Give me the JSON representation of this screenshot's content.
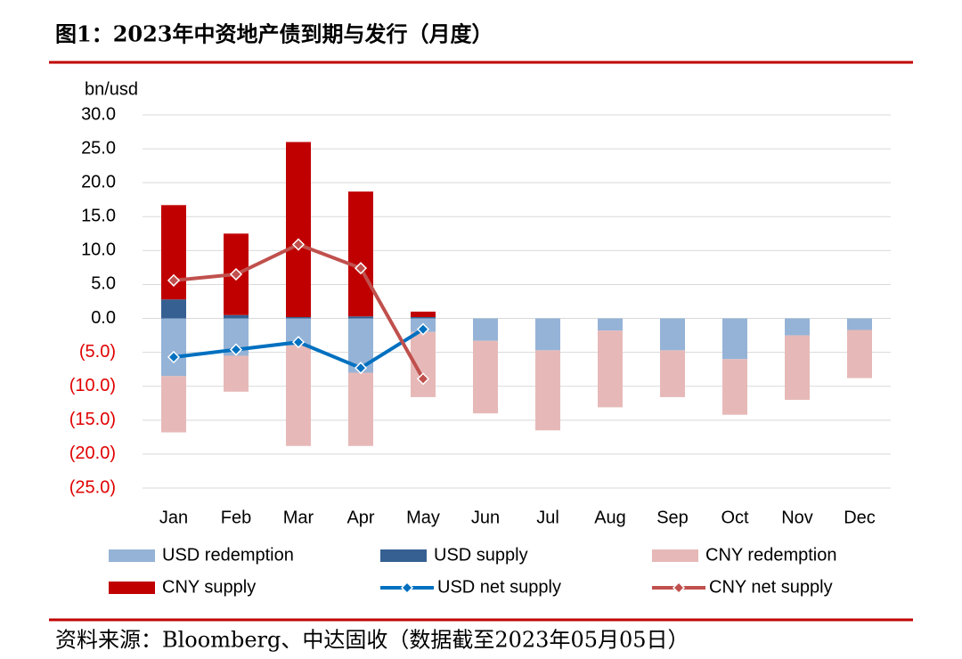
{
  "title": "图1：2023年中资地产债到期与发行（月度）",
  "source": "资料来源：Bloomberg、中达固收（数据截至2023年05月05日）",
  "chart_data": {
    "type": "bar",
    "y_label": "bn/usd",
    "categories": [
      "Jan",
      "Feb",
      "Mar",
      "Apr",
      "May",
      "Jun",
      "Jul",
      "Aug",
      "Sep",
      "Oct",
      "Nov",
      "Dec"
    ],
    "series": [
      {
        "name": "USD redemption",
        "kind": "bar",
        "color": "#95b3d7",
        "values": [
          -8.5,
          -5.5,
          -4.0,
          -8.0,
          -2.0,
          -3.3,
          -4.7,
          -1.8,
          -4.7,
          -6.0,
          -2.5,
          -1.7
        ]
      },
      {
        "name": "USD supply",
        "kind": "bar",
        "color": "#366092",
        "values": [
          2.8,
          0.5,
          0.2,
          0.3,
          0.2,
          0,
          0,
          0,
          0,
          0,
          0,
          0
        ]
      },
      {
        "name": "CNY redemption",
        "kind": "bar",
        "color": "#e6b9b8",
        "values": [
          -8.3,
          -5.3,
          -14.8,
          -10.8,
          -9.6,
          -10.7,
          -11.8,
          -11.3,
          -6.9,
          -8.2,
          -9.5,
          -7.1
        ]
      },
      {
        "name": "CNY supply",
        "kind": "bar",
        "color": "#c00000",
        "values": [
          13.9,
          12.0,
          25.8,
          18.4,
          0.8,
          0,
          0,
          0,
          0,
          0,
          0,
          0
        ]
      },
      {
        "name": "USD net supply",
        "kind": "line",
        "color": "#0070c0",
        "values": [
          -5.7,
          -4.6,
          -3.5,
          -7.3,
          -1.6,
          null,
          null,
          null,
          null,
          null,
          null,
          null
        ]
      },
      {
        "name": "CNY net supply",
        "kind": "line",
        "color": "#c0504d",
        "values": [
          5.6,
          6.5,
          10.9,
          7.4,
          -8.9,
          null,
          null,
          null,
          null,
          null,
          null,
          null
        ]
      }
    ],
    "ylim": [
      -25,
      30
    ],
    "yticks": [
      {
        "value": 30,
        "label": "30.0"
      },
      {
        "value": 25,
        "label": "25.0"
      },
      {
        "value": 20,
        "label": "20.0"
      },
      {
        "value": 15,
        "label": "15.0"
      },
      {
        "value": 10,
        "label": "10.0"
      },
      {
        "value": 5,
        "label": "5.0"
      },
      {
        "value": 0,
        "label": "0.0"
      },
      {
        "value": -5,
        "label": "(5.0)"
      },
      {
        "value": -10,
        "label": "(10.0)"
      },
      {
        "value": -15,
        "label": "(15.0)"
      },
      {
        "value": -20,
        "label": "(20.0)"
      },
      {
        "value": -25,
        "label": "(25.0)"
      }
    ],
    "negative_tick_color": "#e00000",
    "grid": true
  }
}
